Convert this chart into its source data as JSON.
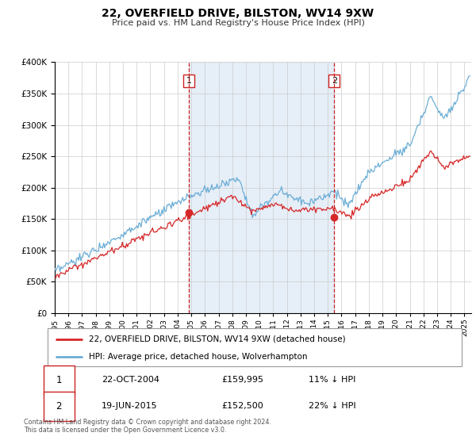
{
  "title": "22, OVERFIELD DRIVE, BILSTON, WV14 9XW",
  "subtitle": "Price paid vs. HM Land Registry's House Price Index (HPI)",
  "legend_line1": "22, OVERFIELD DRIVE, BILSTON, WV14 9XW (detached house)",
  "legend_line2": "HPI: Average price, detached house, Wolverhampton",
  "sale1_label": "1",
  "sale1_date": "22-OCT-2004",
  "sale1_price": "£159,995",
  "sale1_hpi": "11% ↓ HPI",
  "sale1_year": 2004.81,
  "sale1_value": 159995,
  "sale2_label": "2",
  "sale2_date": "19-JUN-2015",
  "sale2_price": "£152,500",
  "sale2_hpi": "22% ↓ HPI",
  "sale2_year": 2015.47,
  "sale2_value": 152500,
  "hpi_color": "#6baed6",
  "price_color": "#d62728",
  "vline_color": "#cc2222",
  "ylim": [
    0,
    400000
  ],
  "xlim_start": 1995.0,
  "xlim_end": 2025.5,
  "footer": "Contains HM Land Registry data © Crown copyright and database right 2024.\nThis data is licensed under the Open Government Licence v3.0."
}
